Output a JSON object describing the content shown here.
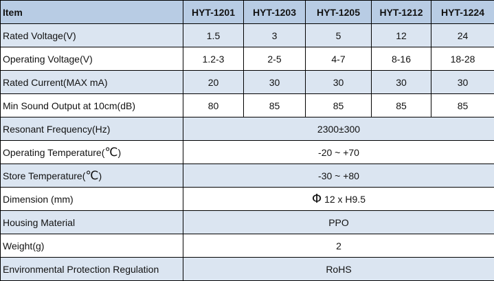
{
  "header": {
    "item": "Item",
    "models": [
      "HYT-1201",
      "HYT-1203",
      "HYT-1205",
      "HYT-1212",
      "HYT-1224"
    ]
  },
  "model_rows": [
    {
      "label": "Rated Voltage(V)",
      "values": [
        "1.5",
        "3",
        "5",
        "12",
        "24"
      ]
    },
    {
      "label": "Operating Voltage(V)",
      "values": [
        "1.2-3",
        "2-5",
        "4-7",
        "8-16",
        "18-28"
      ]
    },
    {
      "label": "Rated Current(MAX mA)",
      "values": [
        "20",
        "30",
        "30",
        "30",
        "30"
      ]
    },
    {
      "label": "Min Sound Output at 10cm(dB)",
      "values": [
        "80",
        "85",
        "85",
        "85",
        "85"
      ]
    }
  ],
  "common_rows": [
    {
      "label": "Resonant Frequency(Hz)",
      "value": "2300±300"
    },
    {
      "label_pre": "Operating Temperature(",
      "label_unit": "℃",
      "label_post": ")",
      "value": "-20 ~ +70"
    },
    {
      "label_pre": "Store Temperature(",
      "label_unit": "℃",
      "label_post": ")",
      "value": "-30 ~ +80"
    },
    {
      "label": "Dimension (mm)",
      "value_symbol": "Φ",
      "value": "12 x H9.5"
    },
    {
      "label": "Housing Material",
      "value": "PPO"
    },
    {
      "label": "Weight(g)",
      "value": "2"
    },
    {
      "label": "Environmental Protection Regulation",
      "value": "RoHS"
    }
  ],
  "colors": {
    "header_bg": "#b8cce4",
    "alt_row_bg": "#dbe5f1",
    "border": "#000000"
  }
}
